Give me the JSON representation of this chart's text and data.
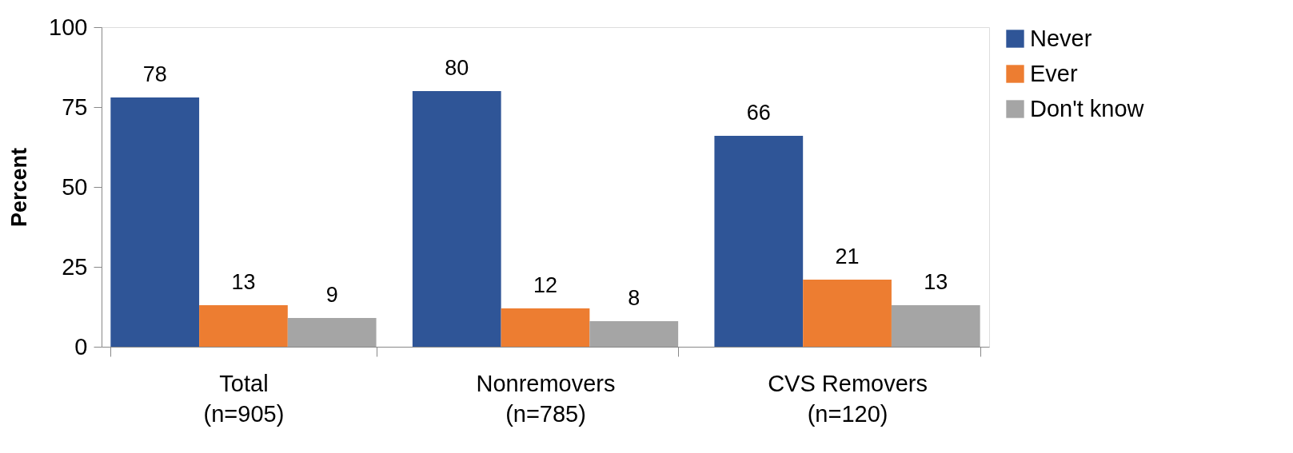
{
  "chart_data": {
    "type": "bar",
    "ylabel": "Percent",
    "categories": [
      "Total\n(n=905)",
      "Nonremovers\n(n=785)",
      "CVS Removers\n(n=120)"
    ],
    "series": [
      {
        "name": "Never",
        "color": "#2f5597",
        "values": [
          78,
          80,
          66
        ]
      },
      {
        "name": "Ever",
        "color": "#ed7d31",
        "values": [
          13,
          12,
          21
        ]
      },
      {
        "name": "Don't know",
        "color": "#a5a5a5",
        "values": [
          9,
          8,
          13
        ]
      }
    ],
    "ylim": [
      0,
      100
    ],
    "yticks": [
      0,
      25,
      50,
      75,
      100
    ],
    "grid": false,
    "legend": "top right",
    "data_labels": true
  }
}
